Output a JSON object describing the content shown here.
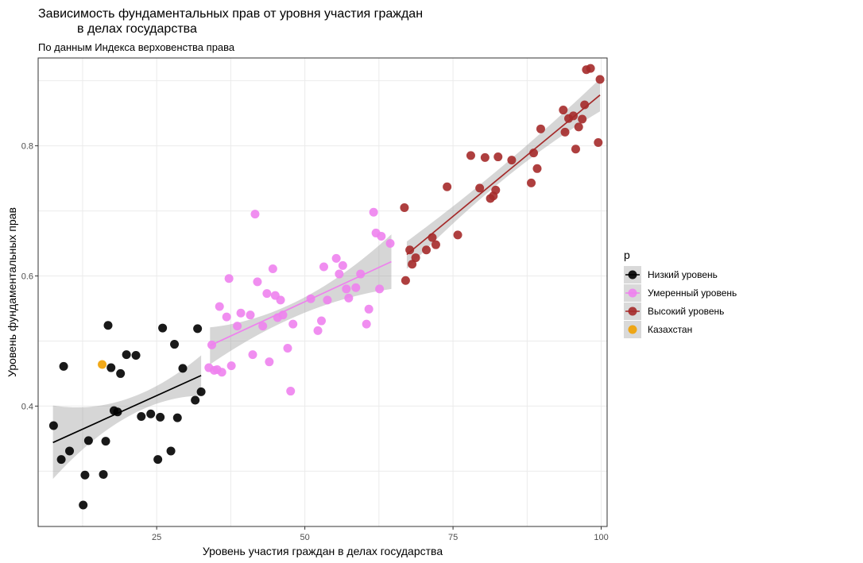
{
  "chart_data": {
    "type": "scatter",
    "title_line1": "Зависимость фундаментальных прав от уровня участия граждан",
    "title_line2": "в делах государства",
    "subtitle": "По данным Индекса верховенства права",
    "xlabel": "Уровень участия граждан в делах государства",
    "ylabel": "Уровень фундаментальных прав",
    "xlim": [
      5,
      101
    ],
    "ylim": [
      0.215,
      0.935
    ],
    "x_ticks": [
      25,
      50,
      75,
      100
    ],
    "y_ticks": [
      0.4,
      0.6,
      0.8
    ],
    "x_tick_labels": [
      "25",
      "50",
      "75",
      "100"
    ],
    "y_tick_labels": [
      "0.4",
      "0.6",
      "0.8"
    ],
    "grid": true,
    "legend": {
      "title": "p",
      "position": "right",
      "entries": [
        {
          "label": "Низкий уровень",
          "color": "#000000"
        },
        {
          "label": "Умеренный уровень",
          "color": "#EE82EE"
        },
        {
          "label": "Высокий уровень",
          "color": "#A52A2A"
        },
        {
          "label": "Казахстан",
          "color": "#F0A000"
        }
      ]
    },
    "series": [
      {
        "name": "Низкий уровень",
        "color": "#000000",
        "fit": {
          "x": [
            7.5,
            32.5
          ],
          "y": [
            0.344,
            0.447
          ]
        },
        "band": {
          "x": [
            7.5,
            20,
            32.5
          ],
          "lower": [
            0.288,
            0.383,
            0.416
          ],
          "upper": [
            0.401,
            0.411,
            0.478
          ]
        },
        "points": [
          [
            7.6,
            0.37
          ],
          [
            8.9,
            0.318
          ],
          [
            9.3,
            0.461
          ],
          [
            10.3,
            0.331
          ],
          [
            12.6,
            0.248
          ],
          [
            12.9,
            0.294
          ],
          [
            13.5,
            0.347
          ],
          [
            16.0,
            0.295
          ],
          [
            16.4,
            0.346
          ],
          [
            16.8,
            0.524
          ],
          [
            17.3,
            0.459
          ],
          [
            17.8,
            0.393
          ],
          [
            18.4,
            0.391
          ],
          [
            18.9,
            0.45
          ],
          [
            19.9,
            0.479
          ],
          [
            21.5,
            0.478
          ],
          [
            22.4,
            0.384
          ],
          [
            24.0,
            0.388
          ],
          [
            25.2,
            0.318
          ],
          [
            25.6,
            0.383
          ],
          [
            26.0,
            0.52
          ],
          [
            27.4,
            0.331
          ],
          [
            28.0,
            0.495
          ],
          [
            28.5,
            0.382
          ],
          [
            29.4,
            0.458
          ],
          [
            31.5,
            0.409
          ],
          [
            31.9,
            0.519
          ],
          [
            32.5,
            0.422
          ]
        ]
      },
      {
        "name": "Умеренный уровень",
        "color": "#EE82EE",
        "fit": {
          "x": [
            34.0,
            64.6
          ],
          "y": [
            0.493,
            0.622
          ]
        },
        "band": {
          "x": [
            34.0,
            49.3,
            64.6
          ],
          "lower": [
            0.464,
            0.541,
            0.58
          ],
          "upper": [
            0.521,
            0.564,
            0.664
          ]
        },
        "points": [
          [
            33.8,
            0.459
          ],
          [
            34.3,
            0.494
          ],
          [
            34.7,
            0.455
          ],
          [
            35.2,
            0.456
          ],
          [
            35.6,
            0.553
          ],
          [
            36.0,
            0.452
          ],
          [
            36.8,
            0.537
          ],
          [
            37.2,
            0.596
          ],
          [
            37.6,
            0.462
          ],
          [
            38.6,
            0.523
          ],
          [
            39.2,
            0.543
          ],
          [
            40.8,
            0.54
          ],
          [
            41.2,
            0.479
          ],
          [
            41.6,
            0.695
          ],
          [
            42.0,
            0.591
          ],
          [
            42.9,
            0.523
          ],
          [
            43.6,
            0.573
          ],
          [
            44.0,
            0.468
          ],
          [
            44.6,
            0.611
          ],
          [
            45.0,
            0.57
          ],
          [
            45.4,
            0.536
          ],
          [
            45.9,
            0.563
          ],
          [
            46.3,
            0.54
          ],
          [
            47.1,
            0.489
          ],
          [
            47.6,
            0.423
          ],
          [
            48.0,
            0.526
          ],
          [
            51.0,
            0.565
          ],
          [
            52.2,
            0.516
          ],
          [
            52.8,
            0.531
          ],
          [
            53.2,
            0.614
          ],
          [
            53.8,
            0.563
          ],
          [
            55.3,
            0.627
          ],
          [
            55.8,
            0.603
          ],
          [
            56.4,
            0.616
          ],
          [
            57.0,
            0.58
          ],
          [
            57.4,
            0.566
          ],
          [
            58.6,
            0.582
          ],
          [
            59.4,
            0.603
          ],
          [
            60.4,
            0.526
          ],
          [
            60.8,
            0.549
          ],
          [
            61.6,
            0.698
          ],
          [
            62.0,
            0.666
          ],
          [
            62.6,
            0.58
          ],
          [
            62.9,
            0.661
          ],
          [
            64.4,
            0.65
          ]
        ]
      },
      {
        "name": "Высокий уровень",
        "color": "#A52A2A",
        "fit": {
          "x": [
            67.2,
            99.8
          ],
          "y": [
            0.633,
            0.878
          ]
        },
        "band": {
          "x": [
            67.2,
            83.5,
            99.8
          ],
          "lower": [
            0.611,
            0.748,
            0.853
          ],
          "upper": [
            0.653,
            0.77,
            0.903
          ]
        },
        "points": [
          [
            66.8,
            0.705
          ],
          [
            67.0,
            0.593
          ],
          [
            67.7,
            0.64
          ],
          [
            68.1,
            0.618
          ],
          [
            68.7,
            0.628
          ],
          [
            70.5,
            0.64
          ],
          [
            71.5,
            0.659
          ],
          [
            72.1,
            0.648
          ],
          [
            74.0,
            0.737
          ],
          [
            75.8,
            0.663
          ],
          [
            78.0,
            0.785
          ],
          [
            79.5,
            0.735
          ],
          [
            80.4,
            0.782
          ],
          [
            81.3,
            0.719
          ],
          [
            81.8,
            0.723
          ],
          [
            82.2,
            0.732
          ],
          [
            82.6,
            0.783
          ],
          [
            84.9,
            0.778
          ],
          [
            88.2,
            0.743
          ],
          [
            88.6,
            0.789
          ],
          [
            89.2,
            0.765
          ],
          [
            89.8,
            0.826
          ],
          [
            93.6,
            0.855
          ],
          [
            93.9,
            0.821
          ],
          [
            94.5,
            0.842
          ],
          [
            95.3,
            0.846
          ],
          [
            95.7,
            0.795
          ],
          [
            96.2,
            0.829
          ],
          [
            96.8,
            0.841
          ],
          [
            97.2,
            0.863
          ],
          [
            97.5,
            0.917
          ],
          [
            98.2,
            0.919
          ],
          [
            99.5,
            0.805
          ],
          [
            99.8,
            0.902
          ]
        ]
      },
      {
        "name": "Казахстан",
        "color": "#F0A000",
        "points": [
          [
            15.8,
            0.464
          ]
        ]
      }
    ]
  }
}
